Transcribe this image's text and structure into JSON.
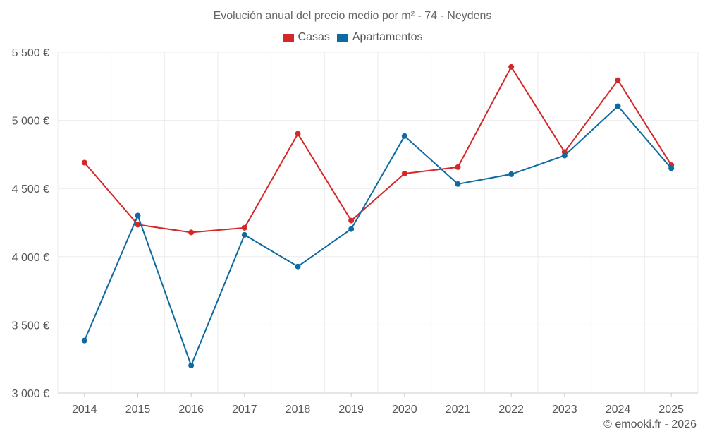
{
  "chart_data": {
    "type": "line",
    "title": "Evolución anual del precio medio por m² - 74 - Neydens",
    "categories": [
      "2014",
      "2015",
      "2016",
      "2017",
      "2018",
      "2019",
      "2020",
      "2021",
      "2022",
      "2023",
      "2024",
      "2025"
    ],
    "series": [
      {
        "name": "Casas",
        "color": "#d62728",
        "values": [
          4690,
          4235,
          4178,
          4212,
          4902,
          4265,
          4610,
          4657,
          5392,
          4768,
          5295,
          4672
        ]
      },
      {
        "name": "Apartamentos",
        "color": "#0f6aa0",
        "values": [
          3385,
          4302,
          3202,
          4160,
          3928,
          4203,
          4885,
          4533,
          4605,
          4742,
          5104,
          4648
        ]
      }
    ],
    "y_ticks": [
      {
        "value": 3000,
        "label": "3 000 €"
      },
      {
        "value": 3500,
        "label": "3 500 €"
      },
      {
        "value": 4000,
        "label": "4 000 €"
      },
      {
        "value": 4500,
        "label": "4 500 €"
      },
      {
        "value": 5000,
        "label": "5 000 €"
      },
      {
        "value": 5500,
        "label": "5 500 €"
      }
    ],
    "ylim": [
      3000,
      5500
    ],
    "xlabel": "",
    "ylabel": "",
    "grid": true,
    "legend_position": "top-center"
  },
  "footer": "© emooki.fr - 2026"
}
